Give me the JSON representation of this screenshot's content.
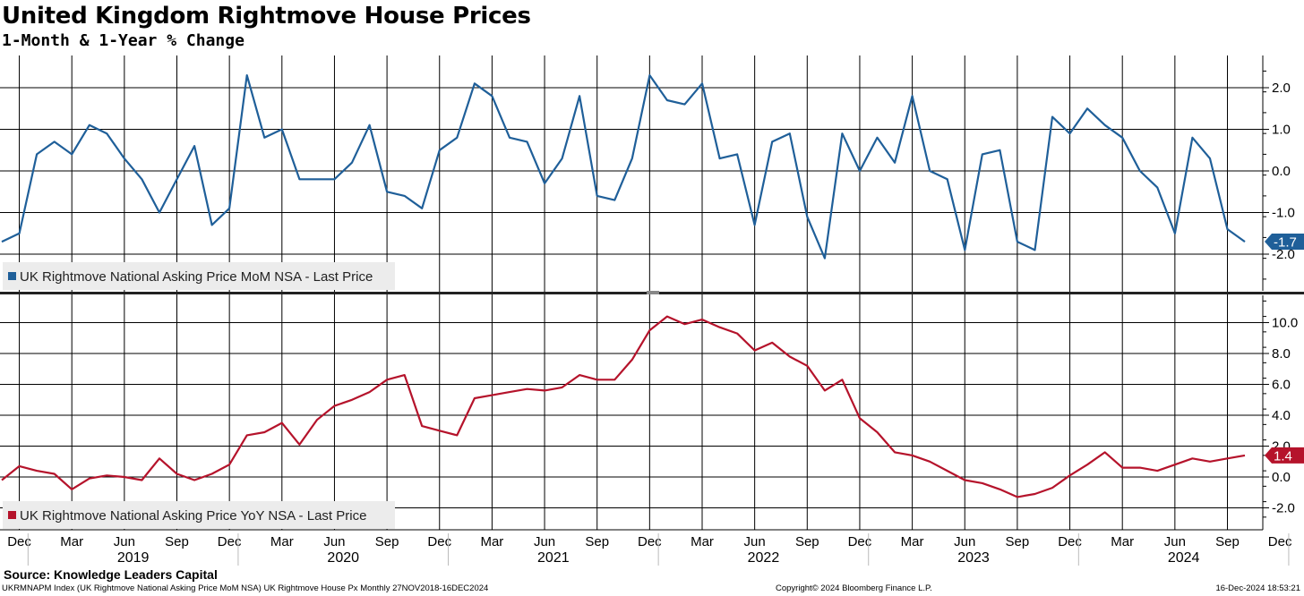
{
  "header": {
    "title": "United Kingdom Rightmove House Prices",
    "subtitle": "1-Month & 1-Year % Change"
  },
  "footer": {
    "source": "Source: Knowledge Leaders Capital",
    "index_info": "UKRMNAPM Index (UK Rightmove National Asking Price MoM NSA) UK Rightmove House Px  Monthly 27NOV2018-16DEC2024",
    "copyright": "Copyright© 2024 Bloomberg Finance L.P.",
    "timestamp": "16-Dec-2024 18:53:21"
  },
  "colors": {
    "mom": "#1f5f99",
    "yoy": "#b5132b",
    "grid": "#000000",
    "legend_bg": "#ececec"
  },
  "chart_data": [
    {
      "type": "line",
      "x_start": "Nov 2018",
      "x_end": "Dec 2024",
      "frequency": "monthly",
      "ylim": [
        -2.6,
        2.8
      ],
      "yticks": [
        2.0,
        1.0,
        0.0,
        -1.0,
        -2.0
      ],
      "ytick_labels": [
        "2.0",
        "1.0",
        "0.0",
        "-1.0",
        "-2.0"
      ],
      "grid": true,
      "legend_position": "bottom-left",
      "last_value_label": "-1.7",
      "series": [
        {
          "name": "UK Rightmove National Asking Price MoM NSA - Last Price",
          "values": [
            -1.7,
            -1.5,
            0.4,
            0.7,
            0.4,
            1.1,
            0.9,
            0.3,
            -0.2,
            -1.0,
            -0.2,
            0.6,
            -1.3,
            -0.9,
            2.3,
            0.8,
            1.0,
            -0.2,
            -0.2,
            -0.2,
            0.2,
            1.1,
            -0.5,
            -0.6,
            -0.9,
            0.5,
            0.8,
            2.1,
            1.8,
            0.8,
            0.7,
            -0.3,
            0.3,
            1.8,
            -0.6,
            -0.7,
            0.3,
            2.3,
            1.7,
            1.6,
            2.1,
            0.3,
            0.4,
            -1.3,
            0.7,
            0.9,
            -1.1,
            -2.1,
            0.9,
            0.0,
            0.8,
            0.2,
            1.8,
            0.0,
            -0.2,
            -1.9,
            0.4,
            0.5,
            -1.7,
            -1.9,
            1.3,
            0.9,
            1.5,
            1.1,
            0.8,
            0.0,
            -0.4,
            -1.5,
            0.8,
            0.3,
            -1.4,
            -1.7
          ]
        }
      ]
    },
    {
      "type": "line",
      "x_start": "Nov 2018",
      "x_end": "Dec 2024",
      "frequency": "monthly",
      "ylim": [
        -3.6,
        11.4
      ],
      "yticks": [
        10.0,
        8.0,
        6.0,
        4.0,
        2.0,
        0.0,
        -2.0
      ],
      "ytick_labels": [
        "10.0",
        "8.0",
        "6.0",
        "4.0",
        "2.0",
        "0.0",
        "-2.0"
      ],
      "grid": true,
      "legend_position": "bottom-left",
      "last_value_label": "1.4",
      "series": [
        {
          "name": "UK Rightmove National Asking Price YoY NSA - Last Price",
          "values": [
            -0.2,
            0.7,
            0.4,
            0.2,
            -0.8,
            -0.1,
            0.1,
            0.0,
            -0.2,
            1.2,
            0.2,
            -0.2,
            0.2,
            0.8,
            2.7,
            2.9,
            3.5,
            2.1,
            3.7,
            4.6,
            5.0,
            5.5,
            6.3,
            6.6,
            3.3,
            3.0,
            2.7,
            5.1,
            5.3,
            5.5,
            5.7,
            5.6,
            5.8,
            6.6,
            6.3,
            6.3,
            7.6,
            9.5,
            10.4,
            9.9,
            10.2,
            9.7,
            9.3,
            8.2,
            8.7,
            7.8,
            7.2,
            5.6,
            6.3,
            3.8,
            2.9,
            1.6,
            1.4,
            1.0,
            0.4,
            -0.2,
            -0.4,
            -0.8,
            -1.3,
            -1.1,
            -0.7,
            0.1,
            0.8,
            1.6,
            0.6,
            0.6,
            0.4,
            0.8,
            1.2,
            1.0,
            1.2,
            1.4
          ]
        }
      ]
    }
  ],
  "x_axis": {
    "month_labels": [
      "Dec",
      "Mar",
      "Jun",
      "Sep",
      "Dec",
      "Mar",
      "Jun",
      "Sep",
      "Dec",
      "Mar",
      "Jun",
      "Sep",
      "Dec",
      "Mar",
      "Jun",
      "Sep",
      "Dec",
      "Mar",
      "Jun",
      "Sep",
      "Dec",
      "Mar",
      "Jun",
      "Sep",
      "Dec"
    ],
    "year_labels": [
      "2019",
      "2020",
      "2021",
      "2022",
      "2023",
      "2024"
    ]
  }
}
